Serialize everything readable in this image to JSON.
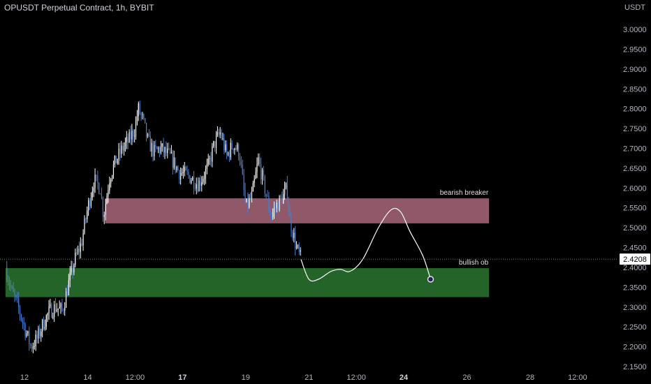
{
  "header": {
    "title": "OPUSDT Perpetual Contract, 1h, BYBIT"
  },
  "axis": {
    "unit": "USDT"
  },
  "colors": {
    "up": "#ffffff",
    "down": "#4b7bd0",
    "bearish": "#b06b80",
    "bullish": "#2e7d32",
    "path": "#ffffff"
  },
  "chart_data": {
    "type": "candlestick",
    "title": "OPUSDT Perpetual Contract, 1h, BYBIT",
    "ylim": [
      2.15,
      3.03
    ],
    "y_ticks": [
      "3.0000",
      "2.9500",
      "2.9000",
      "2.8500",
      "2.8000",
      "2.7500",
      "2.7000",
      "2.6500",
      "2.6000",
      "2.5500",
      "2.5000",
      "2.4500",
      "2.4000",
      "2.3500",
      "2.3000",
      "2.2500",
      "2.2000",
      "2.1500"
    ],
    "x_ticks": [
      {
        "label": "12",
        "bold": false,
        "day": 12
      },
      {
        "label": "14",
        "bold": false,
        "day": 14
      },
      {
        "label": "12:00",
        "bold": false,
        "day": 15.5
      },
      {
        "label": "17",
        "bold": true,
        "day": 17
      },
      {
        "label": "19",
        "bold": false,
        "day": 19
      },
      {
        "label": "21",
        "bold": false,
        "day": 21
      },
      {
        "label": "12:00",
        "bold": false,
        "day": 22.5
      },
      {
        "label": "24",
        "bold": true,
        "day": 24
      },
      {
        "label": "26",
        "bold": false,
        "day": 26
      },
      {
        "label": "28",
        "bold": false,
        "day": 28
      },
      {
        "label": "12:00",
        "bold": false,
        "day": 29.5
      }
    ],
    "last_price": "2.4208",
    "last_value": 2.4208,
    "zones": [
      {
        "name": "bearish breaker",
        "from_day": 14.55,
        "to_day": 26.7,
        "high": 2.574,
        "low": 2.511,
        "color": "bearish"
      },
      {
        "name": "bullish ob",
        "from_day": 11.4,
        "to_day": 26.7,
        "high": 2.398,
        "low": 2.325,
        "color": "bullish"
      }
    ],
    "close_path": [
      [
        11.4,
        2.4
      ],
      [
        11.6,
        2.34
      ],
      [
        11.8,
        2.3
      ],
      [
        12.0,
        2.25
      ],
      [
        12.2,
        2.2
      ],
      [
        12.4,
        2.22
      ],
      [
        12.6,
        2.26
      ],
      [
        12.8,
        2.29
      ],
      [
        13.0,
        2.3
      ],
      [
        13.2,
        2.29
      ],
      [
        13.4,
        2.36
      ],
      [
        13.6,
        2.42
      ],
      [
        13.8,
        2.46
      ],
      [
        14.0,
        2.55
      ],
      [
        14.2,
        2.62
      ],
      [
        14.4,
        2.6
      ],
      [
        14.5,
        2.53
      ],
      [
        14.7,
        2.63
      ],
      [
        14.9,
        2.67
      ],
      [
        15.1,
        2.7
      ],
      [
        15.3,
        2.72
      ],
      [
        15.5,
        2.75
      ],
      [
        15.6,
        2.8
      ],
      [
        15.75,
        2.77
      ],
      [
        15.9,
        2.72
      ],
      [
        16.1,
        2.69
      ],
      [
        16.3,
        2.7
      ],
      [
        16.6,
        2.68
      ],
      [
        16.9,
        2.64
      ],
      [
        17.2,
        2.63
      ],
      [
        17.5,
        2.61
      ],
      [
        17.8,
        2.65
      ],
      [
        18.0,
        2.71
      ],
      [
        18.2,
        2.74
      ],
      [
        18.4,
        2.68
      ],
      [
        18.6,
        2.71
      ],
      [
        18.8,
        2.69
      ],
      [
        19.0,
        2.55
      ],
      [
        19.2,
        2.58
      ],
      [
        19.4,
        2.67
      ],
      [
        19.6,
        2.6
      ],
      [
        19.8,
        2.53
      ],
      [
        20.0,
        2.56
      ],
      [
        20.2,
        2.58
      ],
      [
        20.3,
        2.6
      ],
      [
        20.4,
        2.52
      ],
      [
        20.6,
        2.45
      ],
      [
        20.75,
        2.42
      ]
    ],
    "projection": [
      [
        20.75,
        2.42
      ],
      [
        21.0,
        2.37
      ],
      [
        21.3,
        2.37
      ],
      [
        21.7,
        2.39
      ],
      [
        22.0,
        2.395
      ],
      [
        22.3,
        2.39
      ],
      [
        22.7,
        2.42
      ],
      [
        23.2,
        2.5
      ],
      [
        23.6,
        2.545
      ],
      [
        23.9,
        2.54
      ],
      [
        24.2,
        2.49
      ],
      [
        24.6,
        2.43
      ],
      [
        24.85,
        2.37
      ]
    ]
  }
}
